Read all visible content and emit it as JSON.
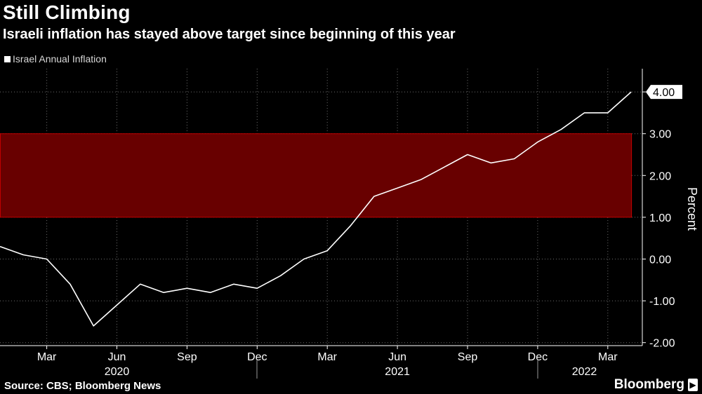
{
  "header": {
    "title": "Still Climbing",
    "subtitle": "Israeli inflation has stayed above target since beginning of this year"
  },
  "legend": {
    "label": "Israel Annual Inflation",
    "color": "#ffffff"
  },
  "footer": {
    "source": "Source: CBS; Bloomberg News",
    "brand": "Bloomberg"
  },
  "colors": {
    "background": "#000000",
    "line": "#ffffff",
    "target_band_fill": "#680000",
    "target_band_border": "#c00000",
    "grid": "#6b6b6b"
  },
  "chart_data": {
    "type": "line",
    "title": "Still Climbing",
    "subtitle": "Israeli inflation has stayed above target since beginning of this year",
    "xlabel": "",
    "ylabel": "Percent",
    "ylim": [
      -2.0,
      4.6
    ],
    "yticks": [
      4.0,
      3.0,
      2.0,
      1.0,
      0.0,
      -1.0,
      -2.0
    ],
    "ytick_labels": [
      "4.00",
      "3.00",
      "2.00",
      "1.00",
      "0.00",
      "-1.00",
      "-2.00"
    ],
    "grid": true,
    "x": [
      "2020-01",
      "2020-02",
      "2020-03",
      "2020-04",
      "2020-05",
      "2020-06",
      "2020-07",
      "2020-08",
      "2020-09",
      "2020-10",
      "2020-11",
      "2020-12",
      "2021-01",
      "2021-02",
      "2021-03",
      "2021-04",
      "2021-05",
      "2021-06",
      "2021-07",
      "2021-08",
      "2021-09",
      "2021-10",
      "2021-11",
      "2021-12",
      "2022-01",
      "2022-02",
      "2022-03",
      "2022-04"
    ],
    "x_ticks": [
      {
        "month": "2020-03",
        "label": "Mar"
      },
      {
        "month": "2020-06",
        "label": "Jun"
      },
      {
        "month": "2020-09",
        "label": "Sep"
      },
      {
        "month": "2020-12",
        "label": "Dec"
      },
      {
        "month": "2021-03",
        "label": "Mar"
      },
      {
        "month": "2021-06",
        "label": "Jun"
      },
      {
        "month": "2021-09",
        "label": "Sep"
      },
      {
        "month": "2021-12",
        "label": "Dec"
      },
      {
        "month": "2022-03",
        "label": "Mar"
      }
    ],
    "year_labels": [
      {
        "month": "2020-06",
        "label": "2020"
      },
      {
        "month": "2021-06",
        "label": "2021"
      },
      {
        "month": "2022-02",
        "label": "2022"
      }
    ],
    "year_separators": [
      "2020-12.5",
      "2021-12.5"
    ],
    "target_band": {
      "low": 1.0,
      "high": 3.0
    },
    "series": [
      {
        "name": "Israel Annual Inflation",
        "values": [
          0.3,
          0.1,
          0.0,
          -0.6,
          -1.6,
          -1.1,
          -0.6,
          -0.8,
          -0.7,
          -0.8,
          -0.6,
          -0.7,
          -0.4,
          0.0,
          0.2,
          0.8,
          1.5,
          1.7,
          1.9,
          2.2,
          2.5,
          2.3,
          2.4,
          2.8,
          3.1,
          3.5,
          3.5,
          4.0
        ]
      }
    ],
    "last_value_label": "4.00"
  }
}
